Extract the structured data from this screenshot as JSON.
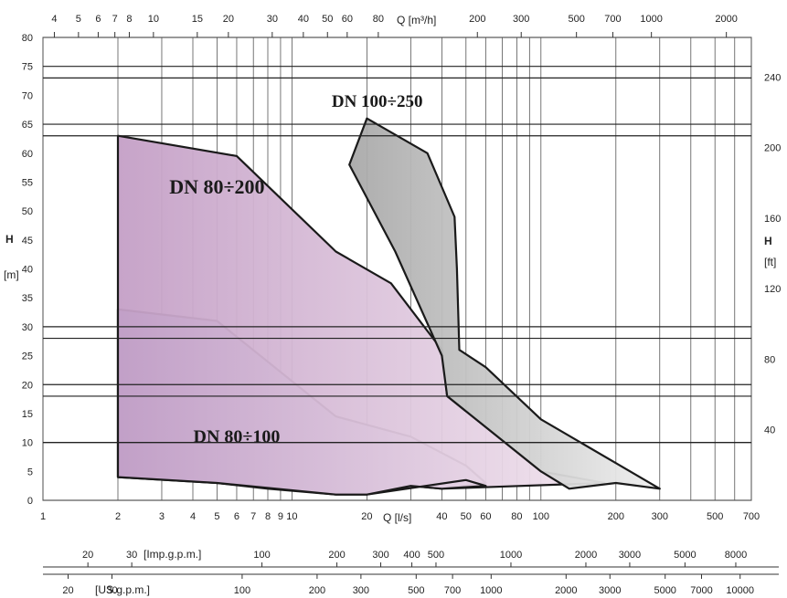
{
  "chart_data": {
    "type": "area",
    "title": "",
    "x_log_scale": true,
    "y_scale": "linear",
    "grid": true,
    "axes": {
      "q_m3h": {
        "unit_label": "Q [m³/h]",
        "ticks": [
          "4",
          "5",
          "6",
          "7",
          "8",
          "10",
          "15",
          "20",
          "30",
          "40",
          "50",
          "60",
          "80",
          "200",
          "300",
          "500",
          "700",
          "1000",
          "2000"
        ],
        "range": [
          3.6,
          2400
        ]
      },
      "q_ls": {
        "unit_label": "Q [l/s]",
        "ticks": [
          "1",
          "2",
          "3",
          "4",
          "5",
          "6",
          "7",
          "8",
          "9",
          "10",
          "20",
          "40",
          "50",
          "60",
          "80",
          "100",
          "200",
          "300",
          "500",
          "700"
        ],
        "range": [
          1,
          700
        ]
      },
      "q_imp_gpm": {
        "unit_label": "[Imp.g.p.m.]",
        "ticks": [
          "20",
          "30",
          "100",
          "200",
          "300",
          "400",
          "500",
          "1000",
          "2000",
          "3000",
          "5000",
          "8000"
        ]
      },
      "q_us_gpm": {
        "unit_label": "[US.g.p.m.]",
        "ticks": [
          "20",
          "30",
          "100",
          "200",
          "300",
          "500",
          "700",
          "1000",
          "2000",
          "3000",
          "5000",
          "7000",
          "10000"
        ]
      },
      "h_m": {
        "label": "H",
        "unit_label": "[m]",
        "ticks": [
          0,
          5,
          10,
          15,
          20,
          25,
          30,
          35,
          40,
          45,
          50,
          55,
          60,
          65,
          70,
          75,
          80
        ],
        "range": [
          0,
          80
        ]
      },
      "h_ft": {
        "label": "H",
        "unit_label": "[ft]",
        "ticks": [
          40,
          80,
          120,
          160,
          200,
          240
        ]
      }
    },
    "series": [
      {
        "name": "DN 80÷100",
        "color": "#9fb6e3",
        "x_ls": [
          2,
          2,
          5,
          15,
          30,
          50,
          60,
          40,
          30,
          20,
          15,
          8,
          5,
          2
        ],
        "y_m": [
          4,
          33,
          31,
          14.5,
          11,
          6,
          3,
          2,
          2.5,
          1,
          1,
          2,
          3,
          4
        ]
      },
      {
        "name": "DN 80÷200",
        "color": "#c9a9cc",
        "x_ls": [
          2,
          2,
          6,
          15,
          25,
          40,
          42,
          100,
          180,
          40,
          30,
          20,
          50,
          60,
          40,
          30,
          20,
          15,
          5,
          2
        ],
        "y_m": [
          33,
          63,
          59.5,
          43,
          37.5,
          26,
          18,
          5,
          3,
          2,
          2.5,
          1,
          3.5,
          2.5,
          2,
          2.5,
          1,
          1,
          3,
          4
        ]
      },
      {
        "name": "DN 100÷250",
        "color": "#b3b3b3",
        "x_ls": [
          17,
          20,
          35,
          45,
          46,
          47,
          60,
          100,
          300,
          200,
          130,
          100,
          42,
          40,
          26,
          17
        ],
        "y_m": [
          58,
          66,
          60,
          49,
          40,
          26,
          23,
          14,
          2,
          3,
          2,
          5,
          18,
          25,
          43,
          58
        ]
      }
    ],
    "annotations": [
      "DN 80÷100",
      "DN 80÷200",
      "DN 100÷250"
    ]
  }
}
